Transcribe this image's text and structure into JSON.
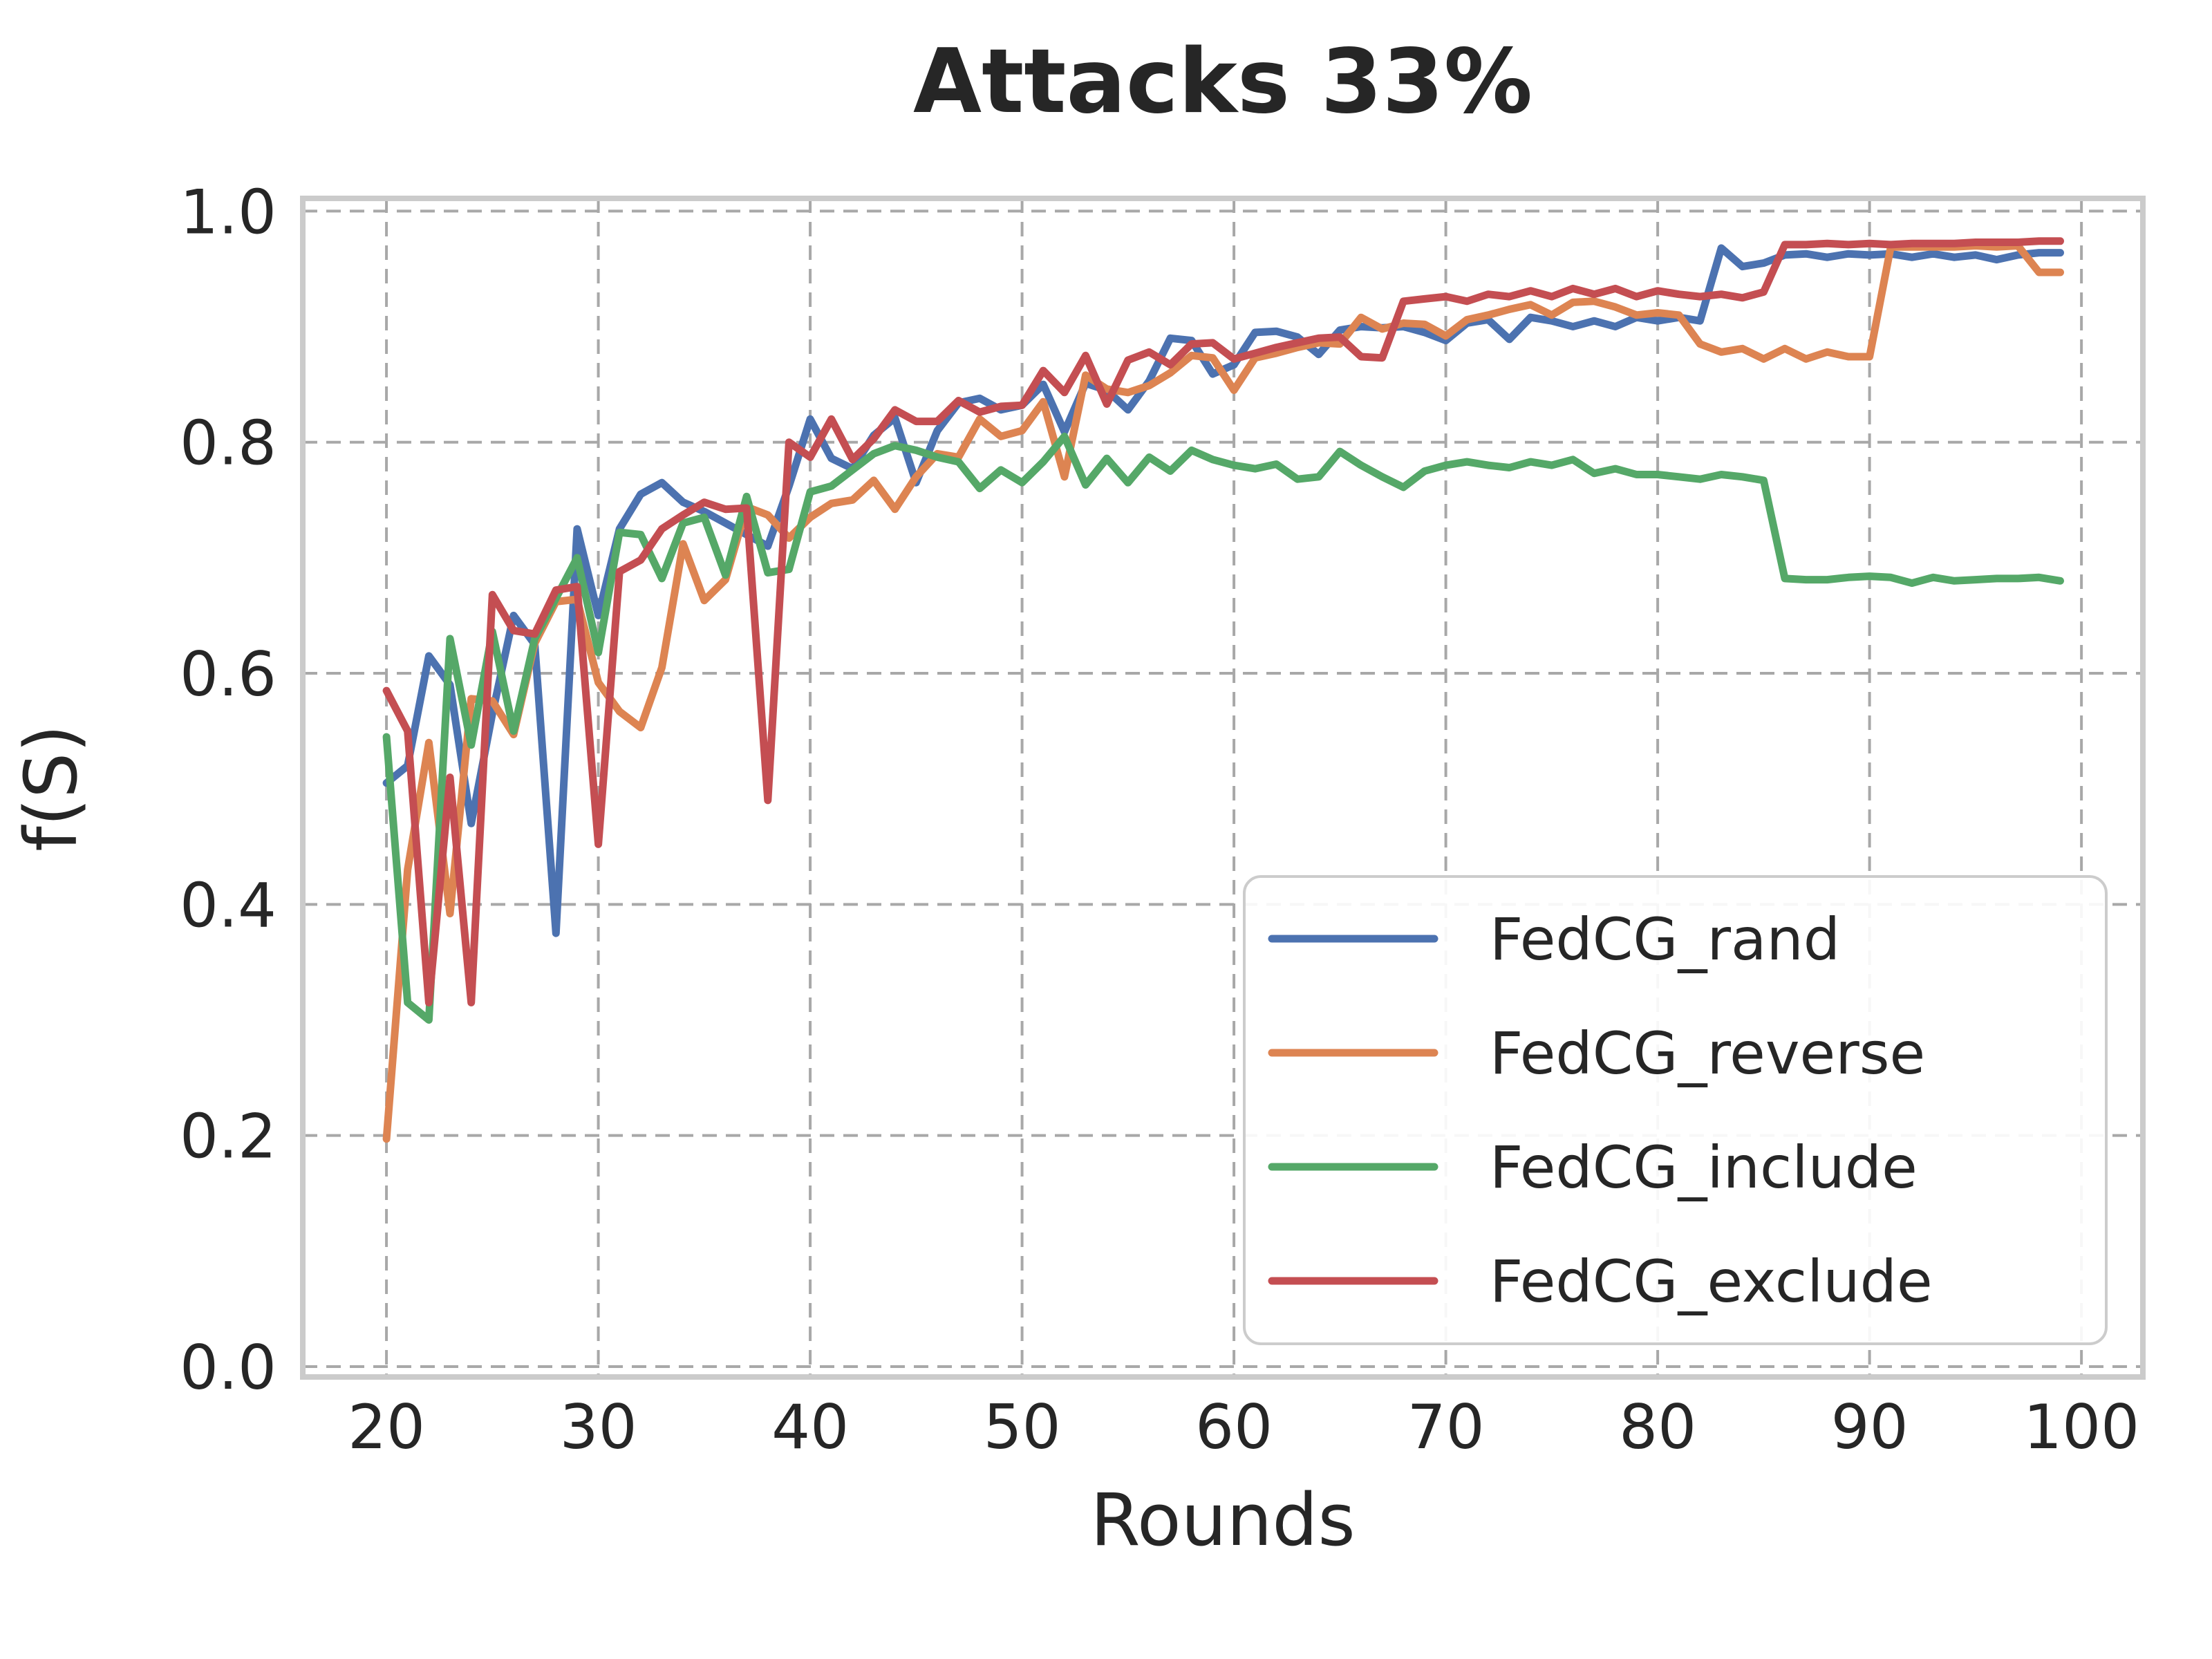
{
  "chart_data": {
    "type": "line",
    "title": "Attacks 33%",
    "xlabel": "Rounds",
    "ylabel": "f(S)",
    "x_ticks": [
      20,
      30,
      40,
      50,
      60,
      70,
      80,
      90,
      100
    ],
    "y_ticks": [
      0.0,
      0.2,
      0.4,
      0.6,
      0.8,
      1.0
    ],
    "xlim": [
      16.05,
      102.9
    ],
    "ylim": [
      -0.009,
      1.011
    ],
    "grid": true,
    "grid_style": "dashed",
    "legend_position": "lower right",
    "x": [
      20,
      21,
      22,
      23,
      24,
      25,
      26,
      27,
      28,
      29,
      30,
      31,
      32,
      33,
      34,
      35,
      36,
      37,
      38,
      39,
      40,
      41,
      42,
      43,
      44,
      45,
      46,
      47,
      48,
      49,
      50,
      51,
      52,
      53,
      54,
      55,
      56,
      57,
      58,
      59,
      60,
      61,
      62,
      63,
      64,
      65,
      66,
      67,
      68,
      69,
      70,
      71,
      72,
      73,
      74,
      75,
      76,
      77,
      78,
      79,
      80,
      81,
      82,
      83,
      84,
      85,
      86,
      87,
      88,
      89,
      90,
      91,
      92,
      93,
      94,
      95,
      96,
      97,
      98,
      99
    ],
    "series": [
      {
        "name": "FedCG_rand",
        "color": "#4C72B0",
        "values": [
          0.505,
          0.52,
          0.615,
          0.59,
          0.47,
          0.565,
          0.65,
          0.625,
          0.375,
          0.725,
          0.65,
          0.725,
          0.755,
          0.765,
          0.748,
          0.74,
          0.73,
          0.72,
          0.71,
          0.762,
          0.82,
          0.786,
          0.777,
          0.806,
          0.821,
          0.765,
          0.81,
          0.834,
          0.838,
          0.828,
          0.832,
          0.85,
          0.809,
          0.851,
          0.845,
          0.828,
          0.853,
          0.89,
          0.888,
          0.859,
          0.867,
          0.895,
          0.896,
          0.891,
          0.876,
          0.897,
          0.9,
          0.899,
          0.9,
          0.895,
          0.888,
          0.903,
          0.906,
          0.889,
          0.908,
          0.905,
          0.9,
          0.905,
          0.9,
          0.908,
          0.905,
          0.908,
          0.905,
          0.968,
          0.952,
          0.955,
          0.962,
          0.963,
          0.96,
          0.963,
          0.962,
          0.963,
          0.96,
          0.963,
          0.96,
          0.962,
          0.958,
          0.962,
          0.964,
          0.964
        ]
      },
      {
        "name": "FedCG_reverse",
        "color": "#DD8452",
        "values": [
          0.197,
          0.43,
          0.54,
          0.392,
          0.578,
          0.576,
          0.547,
          0.626,
          0.662,
          0.664,
          0.592,
          0.567,
          0.553,
          0.605,
          0.712,
          0.663,
          0.681,
          0.744,
          0.737,
          0.717,
          0.735,
          0.747,
          0.75,
          0.767,
          0.742,
          0.77,
          0.79,
          0.787,
          0.82,
          0.805,
          0.81,
          0.835,
          0.77,
          0.858,
          0.846,
          0.843,
          0.849,
          0.86,
          0.875,
          0.873,
          0.845,
          0.873,
          0.877,
          0.882,
          0.886,
          0.885,
          0.908,
          0.898,
          0.903,
          0.902,
          0.892,
          0.906,
          0.91,
          0.915,
          0.919,
          0.91,
          0.921,
          0.922,
          0.917,
          0.91,
          0.912,
          0.91,
          0.885,
          0.878,
          0.881,
          0.872,
          0.881,
          0.872,
          0.878,
          0.874,
          0.874,
          0.969,
          0.969,
          0.969,
          0.969,
          0.97,
          0.969,
          0.97,
          0.947,
          0.947
        ]
      },
      {
        "name": "FedCG_include",
        "color": "#55A868",
        "values": [
          0.545,
          0.315,
          0.3,
          0.63,
          0.538,
          0.636,
          0.55,
          0.63,
          0.665,
          0.7,
          0.618,
          0.722,
          0.72,
          0.682,
          0.73,
          0.735,
          0.685,
          0.753,
          0.687,
          0.69,
          0.757,
          0.762,
          0.776,
          0.79,
          0.797,
          0.793,
          0.787,
          0.783,
          0.76,
          0.776,
          0.765,
          0.783,
          0.805,
          0.763,
          0.786,
          0.765,
          0.787,
          0.775,
          0.793,
          0.785,
          0.78,
          0.777,
          0.781,
          0.768,
          0.77,
          0.792,
          0.78,
          0.77,
          0.761,
          0.775,
          0.78,
          0.783,
          0.78,
          0.778,
          0.783,
          0.78,
          0.785,
          0.773,
          0.777,
          0.772,
          0.772,
          0.77,
          0.768,
          0.772,
          0.77,
          0.767,
          0.682,
          0.681,
          0.681,
          0.683,
          0.684,
          0.683,
          0.678,
          0.683,
          0.68,
          0.681,
          0.682,
          0.682,
          0.683,
          0.68
        ]
      },
      {
        "name": "FedCG_exclude",
        "color": "#C44E52",
        "values": [
          0.585,
          0.55,
          0.315,
          0.51,
          0.315,
          0.668,
          0.637,
          0.634,
          0.672,
          0.675,
          0.452,
          0.688,
          0.698,
          0.725,
          0.737,
          0.748,
          0.742,
          0.743,
          0.49,
          0.8,
          0.787,
          0.82,
          0.785,
          0.803,
          0.828,
          0.818,
          0.818,
          0.836,
          0.826,
          0.831,
          0.832,
          0.862,
          0.843,
          0.875,
          0.833,
          0.871,
          0.878,
          0.867,
          0.885,
          0.886,
          0.872,
          0.877,
          0.882,
          0.886,
          0.89,
          0.891,
          0.874,
          0.873,
          0.922,
          0.924,
          0.926,
          0.922,
          0.928,
          0.926,
          0.931,
          0.926,
          0.933,
          0.928,
          0.933,
          0.926,
          0.931,
          0.928,
          0.926,
          0.928,
          0.925,
          0.93,
          0.971,
          0.971,
          0.972,
          0.971,
          0.972,
          0.971,
          0.972,
          0.972,
          0.972,
          0.973,
          0.973,
          0.973,
          0.974,
          0.974
        ]
      }
    ],
    "style": {
      "grid_color": "#a8a8a8",
      "spine_color": "#cbcbcb",
      "text_color": "#262626",
      "background": "#ffffff",
      "legend_border": "#cccccc",
      "legend_bg": "#ffffff"
    }
  }
}
